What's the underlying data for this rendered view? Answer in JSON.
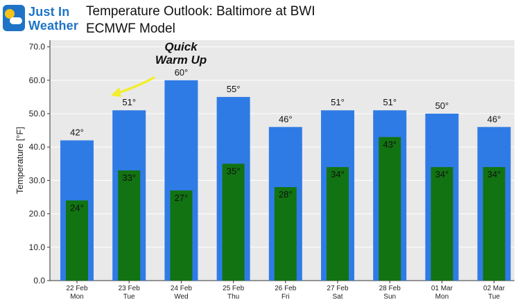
{
  "logo": {
    "line1": "Just In",
    "line2": "Weather"
  },
  "title": "Temperature Outlook: Baltimore at BWI",
  "subtitle": "ECMWF Model",
  "annotation": {
    "line1": "Quick",
    "line2": "Warm Up"
  },
  "colors": {
    "high_bar": "#2f7be6",
    "low_bar": "#127312",
    "plot_bg": "#e9e9e9",
    "arrow": "#f2ee2c"
  },
  "chart_data": {
    "type": "bar",
    "ylabel": "Temperature [°F]",
    "ylim": [
      0,
      72
    ],
    "yticks": [
      0.0,
      10.0,
      20.0,
      30.0,
      40.0,
      50.0,
      60.0,
      70.0
    ],
    "ytick_labels": [
      "0.0",
      "10.0",
      "20.0",
      "30.0",
      "40.0",
      "50.0",
      "60.0",
      "70.0"
    ],
    "categories": [
      "22 Feb",
      "23 Feb",
      "24 Feb",
      "25 Feb",
      "26 Feb",
      "27 Feb",
      "28 Feb",
      "01 Mar",
      "02 Mar"
    ],
    "day_names": [
      "Mon",
      "Tue",
      "Wed",
      "Thu",
      "Fri",
      "Sat",
      "Sun",
      "Mon",
      "Tue"
    ],
    "series": [
      {
        "values": [
          42,
          51,
          60,
          55,
          46,
          51,
          51,
          50,
          46
        ],
        "labels": [
          "42°",
          "51°",
          "60°",
          "55°",
          "46°",
          "51°",
          "51°",
          "50°",
          "46°"
        ]
      },
      {
        "values": [
          24,
          33,
          27,
          35,
          28,
          34,
          43,
          34,
          34
        ],
        "labels": [
          "24°",
          "33°",
          "27°",
          "35°",
          "28°",
          "34°",
          "43°",
          "34°",
          "34°"
        ]
      }
    ],
    "grid": true
  }
}
